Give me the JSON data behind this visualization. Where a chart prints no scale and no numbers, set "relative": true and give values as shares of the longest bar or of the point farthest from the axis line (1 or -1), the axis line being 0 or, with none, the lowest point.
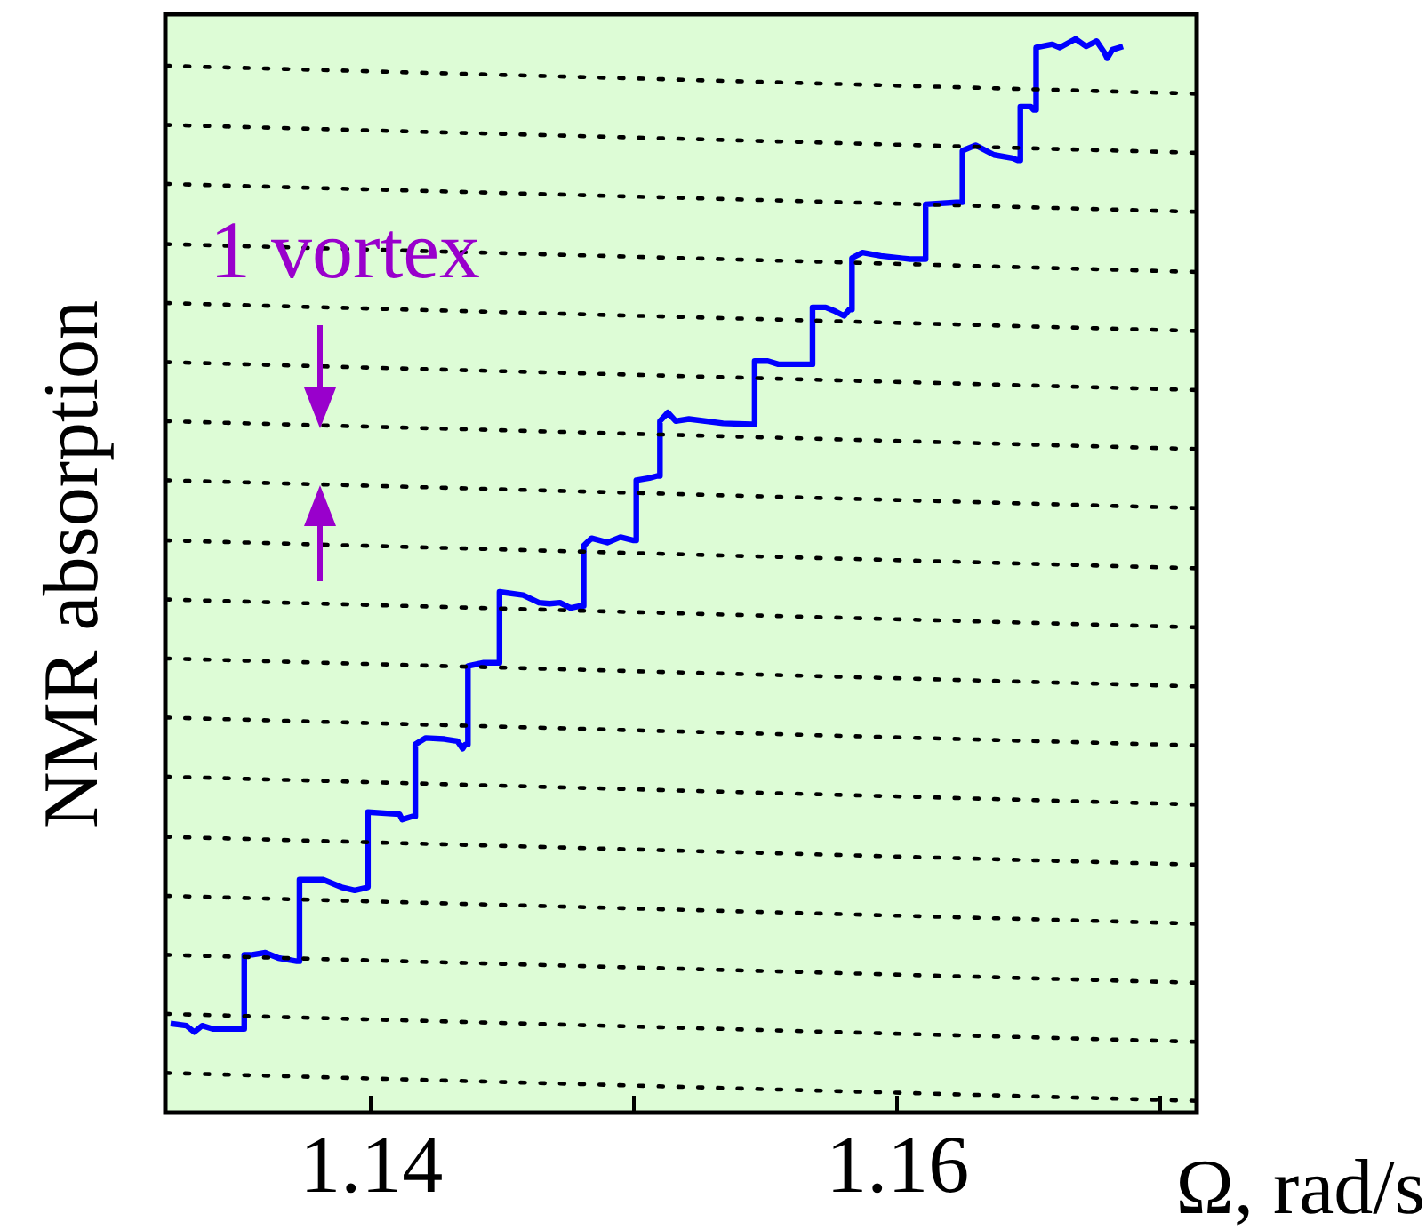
{
  "chart_data": {
    "type": "line",
    "relative": true,
    "xlabel": "Ω, rad/s",
    "ylabel": "NMR absorption",
    "xlim": [
      1.1322,
      1.1714
    ],
    "xticks": [
      1.14,
      {
        "value": 1.15,
        "label": null
      },
      1.16,
      {
        "value": 1.17,
        "label": null
      }
    ],
    "annotations": [
      "1 vortex"
    ],
    "series": [
      {
        "color": "#0000ff",
        "x": [
          1.1324,
          1.133,
          1.1333,
          1.1336,
          1.134,
          1.1351,
          1.1352,
          1.1352,
          1.1355,
          1.136,
          1.1365,
          1.1372,
          1.1373,
          1.1373,
          1.1382,
          1.1389,
          1.1394,
          1.1399,
          1.1399,
          1.1411,
          1.1412,
          1.1416,
          1.1417,
          1.1417,
          1.1421,
          1.1428,
          1.1433,
          1.1435,
          1.1436,
          1.1437,
          1.1437,
          1.1443,
          1.1448,
          1.1449,
          1.1449,
          1.1458,
          1.1464,
          1.1468,
          1.1472,
          1.1476,
          1.148,
          1.1481,
          1.1481,
          1.1484,
          1.149,
          1.1495,
          1.15,
          1.1501,
          1.1501,
          1.1506,
          1.1509,
          1.151,
          1.151,
          1.1513,
          1.1516,
          1.1521,
          1.1534,
          1.1545,
          1.1546,
          1.1546,
          1.1551,
          1.1555,
          1.1567,
          1.1568,
          1.1568,
          1.1573,
          1.1576,
          1.158,
          1.1582,
          1.1583,
          1.1583,
          1.1587,
          1.1594,
          1.1605,
          1.161,
          1.1611,
          1.1611,
          1.1624,
          1.1625,
          1.1625,
          1.163,
          1.1637,
          1.1644,
          1.1646,
          1.1647,
          1.1647,
          1.1651,
          1.1652,
          1.1653,
          1.1653,
          1.1659,
          1.1662,
          1.1668,
          1.1672,
          1.1676,
          1.1679,
          1.168,
          1.1682,
          1.1686
        ],
        "values": [
          0.083,
          0.081,
          0.075,
          0.081,
          0.078,
          0.078,
          0.078,
          0.147,
          0.147,
          0.149,
          0.144,
          0.141,
          0.141,
          0.217,
          0.217,
          0.21,
          0.207,
          0.21,
          0.28,
          0.278,
          0.273,
          0.276,
          0.276,
          0.343,
          0.349,
          0.348,
          0.346,
          0.339,
          0.343,
          0.343,
          0.416,
          0.419,
          0.419,
          0.419,
          0.485,
          0.482,
          0.475,
          0.474,
          0.475,
          0.47,
          0.472,
          0.472,
          0.528,
          0.535,
          0.531,
          0.536,
          0.533,
          0.533,
          0.589,
          0.591,
          0.593,
          0.593,
          0.644,
          0.652,
          0.644,
          0.646,
          0.642,
          0.641,
          0.641,
          0.7,
          0.7,
          0.697,
          0.697,
          0.697,
          0.75,
          0.75,
          0.747,
          0.742,
          0.748,
          0.748,
          0.796,
          0.801,
          0.798,
          0.795,
          0.795,
          0.795,
          0.846,
          0.848,
          0.848,
          0.896,
          0.901,
          0.892,
          0.889,
          0.887,
          0.887,
          0.937,
          0.937,
          0.934,
          0.934,
          0.992,
          0.995,
          0.992,
          1,
          0.993,
          0.998,
          0.987,
          0.982,
          0.99,
          0.993
        ]
      },
      {
        "color": "#000000",
        "line_style": "dotted",
        "x": [
          1.1322,
          1.1714
        ],
        "values": [
          0.975,
          0.949
        ]
      },
      {
        "color": "#000000",
        "line_style": "dotted",
        "x": [
          1.1322,
          1.1714
        ],
        "values": [
          0.92,
          0.894
        ]
      },
      {
        "color": "#000000",
        "line_style": "dotted",
        "x": [
          1.1322,
          1.1714
        ],
        "values": [
          0.865,
          0.839
        ]
      },
      {
        "color": "#000000",
        "line_style": "dotted",
        "x": [
          1.1322,
          1.1714
        ],
        "values": [
          0.809,
          0.783
        ]
      },
      {
        "color": "#000000",
        "line_style": "dotted",
        "x": [
          1.1322,
          1.1714
        ],
        "values": [
          0.754,
          0.728
        ]
      },
      {
        "color": "#000000",
        "line_style": "dotted",
        "x": [
          1.1322,
          1.1714
        ],
        "values": [
          0.699,
          0.673
        ]
      },
      {
        "color": "#000000",
        "line_style": "dotted",
        "x": [
          1.1322,
          1.1714
        ],
        "values": [
          0.644,
          0.618
        ]
      },
      {
        "color": "#000000",
        "line_style": "dotted",
        "x": [
          1.1322,
          1.1714
        ],
        "values": [
          0.589,
          0.563
        ]
      },
      {
        "color": "#000000",
        "line_style": "dotted",
        "x": [
          1.1322,
          1.1714
        ],
        "values": [
          0.533,
          0.507
        ]
      },
      {
        "color": "#000000",
        "line_style": "dotted",
        "x": [
          1.1322,
          1.1714
        ],
        "values": [
          0.478,
          0.452
        ]
      },
      {
        "color": "#000000",
        "line_style": "dotted",
        "x": [
          1.1322,
          1.1714
        ],
        "values": [
          0.423,
          0.397
        ]
      },
      {
        "color": "#000000",
        "line_style": "dotted",
        "x": [
          1.1322,
          1.1714
        ],
        "values": [
          0.368,
          0.342
        ]
      },
      {
        "color": "#000000",
        "line_style": "dotted",
        "x": [
          1.1322,
          1.1714
        ],
        "values": [
          0.313,
          0.287
        ]
      },
      {
        "color": "#000000",
        "line_style": "dotted",
        "x": [
          1.1322,
          1.1714
        ],
        "values": [
          0.257,
          0.231
        ]
      },
      {
        "color": "#000000",
        "line_style": "dotted",
        "x": [
          1.1322,
          1.1714
        ],
        "values": [
          0.202,
          0.176
        ]
      },
      {
        "color": "#000000",
        "line_style": "dotted",
        "x": [
          1.1322,
          1.1714
        ],
        "values": [
          0.147,
          0.121
        ]
      },
      {
        "color": "#000000",
        "line_style": "dotted",
        "x": [
          1.1322,
          1.1714
        ],
        "values": [
          0.092,
          0.066
        ]
      },
      {
        "color": "#000000",
        "line_style": "dotted",
        "x": [
          1.1322,
          1.1714
        ],
        "values": [
          0.037,
          0.011
        ]
      }
    ]
  }
}
